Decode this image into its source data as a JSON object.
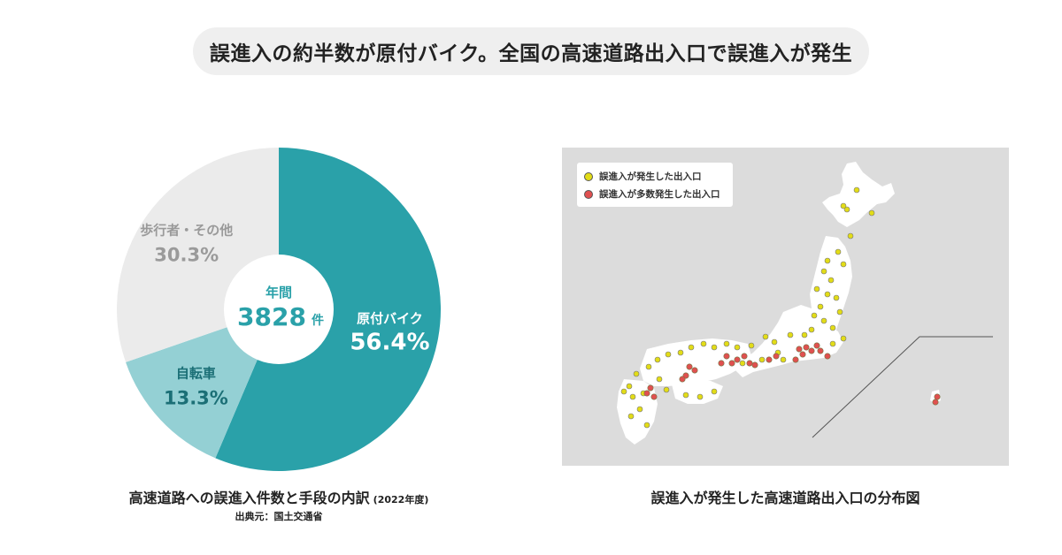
{
  "headline": "誤進入の約半数が原付バイク。全国の高速道路出入口で誤進入が発生",
  "chart_data": {
    "type": "pie",
    "donut": true,
    "center_label": "年間",
    "center_value": "3828",
    "center_unit": "件",
    "series": [
      {
        "name": "原付バイク",
        "value": 56.4,
        "label": "56.4%",
        "color": "#2aa1a9",
        "text_color": "#ffffff"
      },
      {
        "name": "自転車",
        "value": 13.3,
        "label": "13.3%",
        "color": "#94d0d4",
        "text_color": "#1b6f76"
      },
      {
        "name": "歩行者・その他",
        "value": 30.3,
        "label": "30.3%",
        "color": "#ebebeb",
        "text_color": "#9a9a9a"
      }
    ]
  },
  "caption_left": "高速道路への誤進入件数と手段の内訳",
  "caption_left_year": "(2022年度)",
  "source": "出典元：国土交通省",
  "map": {
    "legend": [
      {
        "label": "誤進入が発生した出入口",
        "color": "#e2dc17"
      },
      {
        "label": "誤進入が多数発生した出入口",
        "color": "#e05050"
      }
    ],
    "caption": "誤進入が発生した高速道路出入口の分布図"
  }
}
